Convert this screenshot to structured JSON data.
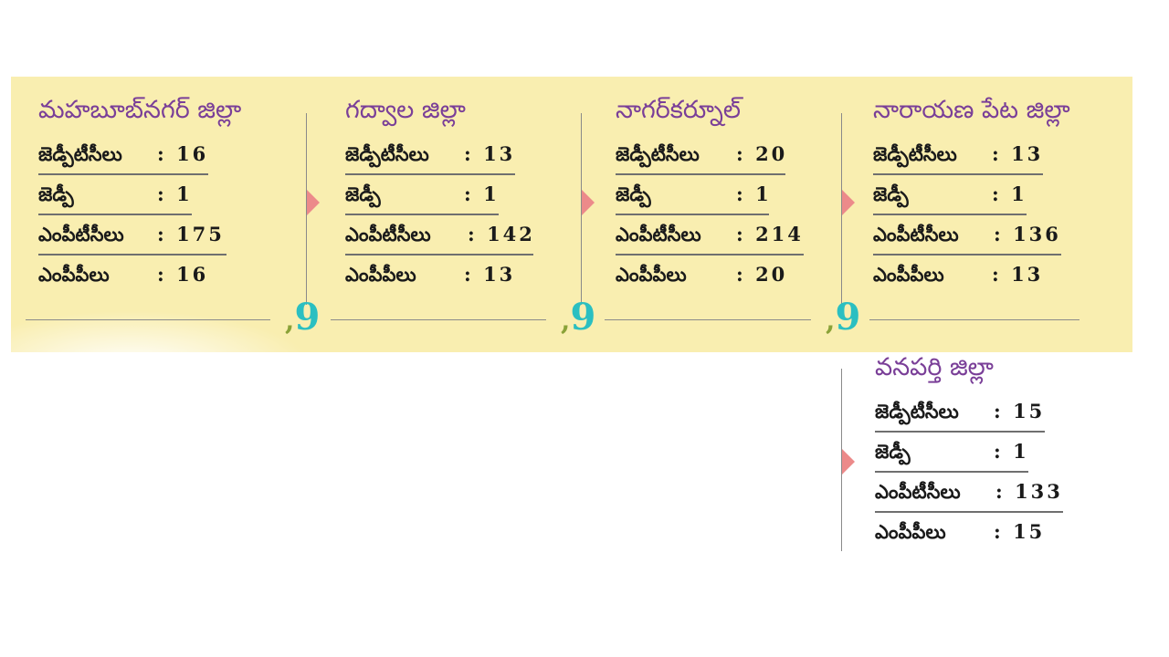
{
  "districts": [
    {
      "name": "మహబూబ్‌నగర్ జిల్లా",
      "rows": [
        {
          "label": "జెడ్పీటీసీలు",
          "value": ": 16"
        },
        {
          "label": "జెడ్పీ",
          "value": ": 1"
        },
        {
          "label": "ఎంపీటీసీలు",
          "value": ": 175"
        },
        {
          "label": "ఎంపీపీలు",
          "value": ": 16"
        }
      ]
    },
    {
      "name": "గద్వాల జిల్లా",
      "rows": [
        {
          "label": "జెడ్పీటీసీలు",
          "value": ": 13"
        },
        {
          "label": "జెడ్పీ",
          "value": ": 1"
        },
        {
          "label": "ఎంపీటీసీలు",
          "value": ": 142"
        },
        {
          "label": "ఎంపీపీలు",
          "value": ": 13"
        }
      ]
    },
    {
      "name": "నాగర్‌కర్నూల్",
      "rows": [
        {
          "label": "జెడ్పీటీసీలు",
          "value": ": 20"
        },
        {
          "label": "జెడ్పీ",
          "value": ": 1"
        },
        {
          "label": "ఎంపీటీసీలు",
          "value": ": 214"
        },
        {
          "label": "ఎంపీపీలు",
          "value": ": 20"
        }
      ]
    },
    {
      "name": "నారాయణ పేట జిల్లా",
      "rows": [
        {
          "label": "జెడ్పీటీసీలు",
          "value": ": 13"
        },
        {
          "label": "జెడ్పీ",
          "value": ": 1"
        },
        {
          "label": "ఎంపీటీసీలు",
          "value": ": 136"
        },
        {
          "label": "ఎంపీపీలు",
          "value": ": 13"
        }
      ]
    },
    {
      "name": "వనపర్తి జిల్లా",
      "rows": [
        {
          "label": "జెడ్పీటీసీలు",
          "value": ": 15"
        },
        {
          "label": "జెడ్పీ",
          "value": ": 1"
        },
        {
          "label": "ఎంపీటీసీలు",
          "value": ": 133"
        },
        {
          "label": "ఎంపీపీలు",
          "value": ": 15"
        }
      ]
    }
  ],
  "colors": {
    "band": "#f9eeb0",
    "title": "#7a3f98",
    "arrow": "#ec8a8a",
    "quote": "#2bbfc1",
    "quote_accent": "#8aa238"
  },
  "icons": [
    "quote-mark-icon",
    "arrow-right-icon"
  ]
}
